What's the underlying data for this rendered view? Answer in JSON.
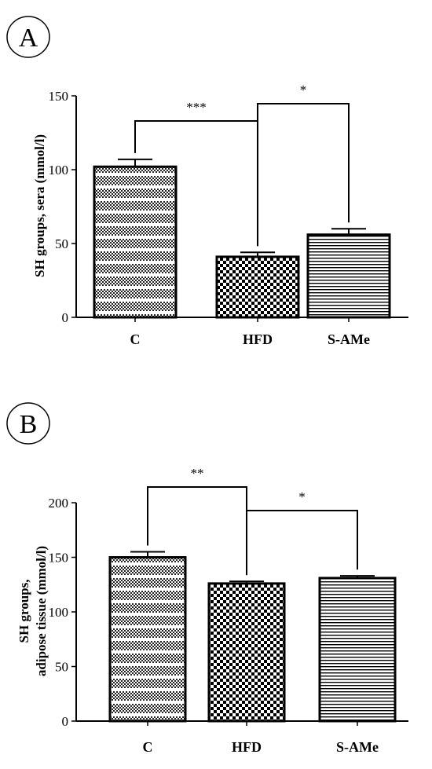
{
  "panels": [
    {
      "id": "A",
      "label": "A",
      "ylabel_lines": [
        "SH groups, sera (mmol/l)"
      ]
    },
    {
      "id": "B",
      "label": "B",
      "ylabel_lines": [
        "SH groups,",
        "adipose tissue (mmol/l)"
      ]
    }
  ],
  "chart_data": [
    {
      "type": "bar",
      "panel": "A",
      "categories": [
        "C",
        "HFD",
        "S-AMe"
      ],
      "values": [
        102,
        41,
        56
      ],
      "errors": [
        5,
        3,
        4
      ],
      "ylabel": "SH groups, sera (mmol/l)",
      "ylim": [
        0,
        150
      ],
      "yticks": [
        0,
        50,
        100,
        150
      ],
      "bar_patterns": [
        "checker-with-white-lines",
        "checker",
        "horizontal-lines"
      ],
      "significance": [
        {
          "from": "C",
          "to": "HFD",
          "label": "***"
        },
        {
          "from": "HFD",
          "to": "S-AMe",
          "label": "*"
        }
      ]
    },
    {
      "type": "bar",
      "panel": "B",
      "categories": [
        "C",
        "HFD",
        "S-AMe"
      ],
      "values": [
        150,
        126,
        131
      ],
      "errors": [
        5,
        2,
        2
      ],
      "ylabel": "SH groups, adipose tissue (mmol/l)",
      "ylim": [
        0,
        200
      ],
      "yticks": [
        0,
        50,
        100,
        150,
        200
      ],
      "bar_patterns": [
        "checker-with-white-lines",
        "checker",
        "horizontal-lines"
      ],
      "significance": [
        {
          "from": "C",
          "to": "HFD",
          "label": "**"
        },
        {
          "from": "HFD",
          "to": "S-AMe",
          "label": "*"
        }
      ]
    }
  ]
}
